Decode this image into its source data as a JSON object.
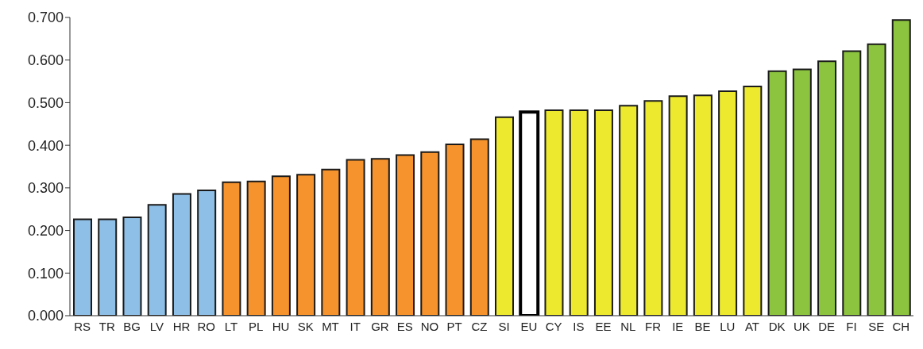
{
  "chart_data": {
    "type": "bar",
    "categories": [
      "RS",
      "TR",
      "BG",
      "LV",
      "HR",
      "RO",
      "LT",
      "PL",
      "HU",
      "SK",
      "MT",
      "IT",
      "GR",
      "ES",
      "NO",
      "PT",
      "CZ",
      "SI",
      "EU",
      "CY",
      "IS",
      "EE",
      "NL",
      "FR",
      "IE",
      "BE",
      "LU",
      "AT",
      "DK",
      "UK",
      "DE",
      "FI",
      "SE",
      "CH"
    ],
    "values": [
      0.226,
      0.226,
      0.231,
      0.26,
      0.286,
      0.294,
      0.313,
      0.315,
      0.327,
      0.331,
      0.343,
      0.366,
      0.368,
      0.377,
      0.384,
      0.402,
      0.414,
      0.466,
      0.478,
      0.482,
      0.482,
      0.482,
      0.493,
      0.504,
      0.515,
      0.517,
      0.527,
      0.538,
      0.574,
      0.578,
      0.597,
      0.621,
      0.637,
      0.694
    ],
    "colors": [
      "#8ebfe6",
      "#8ebfe6",
      "#8ebfe6",
      "#8ebfe6",
      "#8ebfe6",
      "#8ebfe6",
      "#f7932c",
      "#f7932c",
      "#f7932c",
      "#f7932c",
      "#f7932c",
      "#f7932c",
      "#f7932c",
      "#f7932c",
      "#f7932c",
      "#f7932c",
      "#f7932c",
      "#ede92e",
      "#ffffff",
      "#ede92e",
      "#ede92e",
      "#ede92e",
      "#ede92e",
      "#ede92e",
      "#ede92e",
      "#ede92e",
      "#ede92e",
      "#ede92e",
      "#8cc43f",
      "#8cc43f",
      "#8cc43f",
      "#8cc43f",
      "#8cc43f",
      "#8cc43f"
    ],
    "ylim": [
      0,
      0.7
    ],
    "yticks": [
      {
        "value": 0,
        "label": "0.000"
      },
      {
        "value": 0.1,
        "label": "0.100"
      },
      {
        "value": 0.2,
        "label": "0.200"
      },
      {
        "value": 0.3,
        "label": "0.300"
      },
      {
        "value": 0.4,
        "label": "0.400"
      },
      {
        "value": 0.5,
        "label": "0.500"
      },
      {
        "value": 0.6,
        "label": "0.600"
      },
      {
        "value": 0.7,
        "label": "0.700"
      }
    ],
    "grid": false,
    "legend": false
  }
}
